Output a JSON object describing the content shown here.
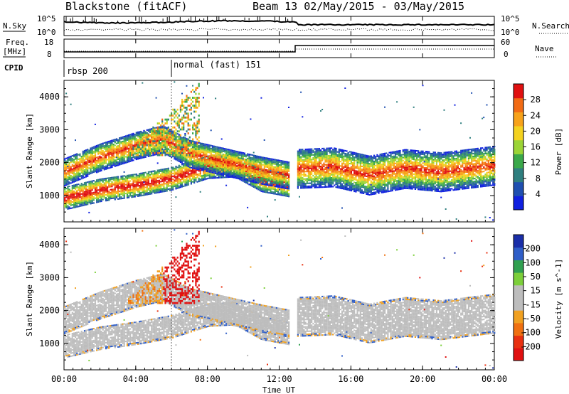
{
  "header": {
    "station": "Blackstone (fitACF)",
    "beam": "Beam 13 02/May/2015 - 03/May/2015"
  },
  "panels": {
    "nsky": {
      "left_label": "N.Sky",
      "left_top": "10^5",
      "left_bottom": "10^0",
      "right_label": "N.Search",
      "right_top": "10^5",
      "right_bottom": "10^0"
    },
    "freq": {
      "left_label_1": "Freq.",
      "left_label_2": "[MHz]",
      "left_top": "18",
      "left_bottom": "8",
      "right_label": "Nave",
      "right_top": "60",
      "right_bottom": "0"
    },
    "cpid": {
      "label": "CPID",
      "modes": [
        "rbsp 200",
        "normal (fast) 151"
      ]
    }
  },
  "colors": {
    "power_scale": [
      "#1020e0",
      "#1f4fb0",
      "#2f7f7f",
      "#3aa84a",
      "#9bd436",
      "#f4d21f",
      "#f7a21a",
      "#f26b14",
      "#e01010"
    ],
    "velocity_scale": [
      "#1a2ea8",
      "#2f5ec8",
      "#30a050",
      "#7ccf3a",
      "#bdbdbd",
      "#bdbdbd",
      "#f0a020",
      "#f07010",
      "#e83010",
      "#e01010"
    ]
  },
  "chart_data": [
    {
      "type": "heatmap",
      "title": "Power",
      "xlabel": "Time UT",
      "ylabel": "Slant Range [km]",
      "x_ticks": [
        "00:00",
        "04:00",
        "08:00",
        "12:00",
        "16:00",
        "20:00",
        "00:00"
      ],
      "x_range_hours": [
        0,
        24
      ],
      "ylim": [
        200,
        4500
      ],
      "y_ticks": [
        "1000",
        "2000",
        "3000",
        "4000"
      ],
      "colorbar": {
        "label": "Power [dB]",
        "ticks": [
          "4",
          "8",
          "12",
          "16",
          "20",
          "24",
          "28"
        ],
        "range": [
          0,
          30
        ]
      },
      "echo_bands": [
        {
          "name": "lower_band",
          "points": [
            [
              0,
              900
            ],
            [
              2,
              1150
            ],
            [
              4,
              1300
            ],
            [
              6,
              1500
            ],
            [
              8,
              1850
            ],
            [
              9.5,
              1900
            ],
            [
              11,
              1450
            ],
            [
              12.5,
              1300
            ],
            [
              13,
              1350
            ]
          ]
        },
        {
          "name": "upper_band",
          "points": [
            [
              0,
              1700
            ],
            [
              2,
              2150
            ],
            [
              4,
              2500
            ],
            [
              5.5,
              2700
            ],
            [
              7,
              2250
            ],
            [
              9,
              2000
            ],
            [
              11,
              1750
            ],
            [
              12.5,
              1600
            ]
          ]
        },
        {
          "name": "main_band_day2",
          "points": [
            [
              13,
              1800
            ],
            [
              15,
              1850
            ],
            [
              17,
              1600
            ],
            [
              19,
              1800
            ],
            [
              21,
              1700
            ],
            [
              24,
              1900
            ]
          ]
        }
      ],
      "grid": false
    },
    {
      "type": "heatmap",
      "title": "Velocity",
      "xlabel": "Time UT",
      "ylabel": "Slant Range [km]",
      "x_ticks": [
        "00:00",
        "04:00",
        "08:00",
        "12:00",
        "16:00",
        "20:00",
        "00:00"
      ],
      "x_range_hours": [
        0,
        24
      ],
      "ylim": [
        200,
        4500
      ],
      "y_ticks": [
        "1000",
        "2000",
        "3000",
        "4000"
      ],
      "colorbar": {
        "label": "Velocity [m s^-1]",
        "ticks": [
          "200",
          "100",
          "50",
          "15",
          "-15",
          "-50",
          "-100",
          "-200"
        ],
        "range": [
          -250,
          250
        ]
      },
      "grid": false
    }
  ]
}
